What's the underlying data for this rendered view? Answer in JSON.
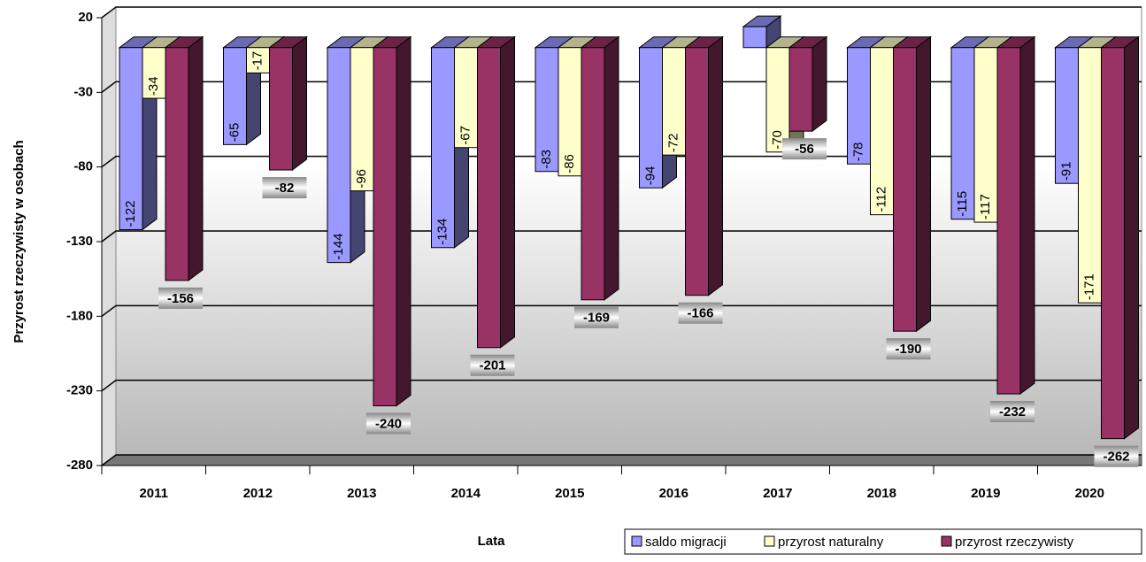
{
  "chart_data": {
    "type": "bar3d",
    "y_label": "Przyrost rzeczywisty w osobach",
    "x_label": "Lata",
    "categories": [
      "2011",
      "2012",
      "2013",
      "2014",
      "2015",
      "2016",
      "2017",
      "2018",
      "2019",
      "2020"
    ],
    "series": [
      {
        "name": "saldo migracji",
        "color": "#9999ff",
        "values": [
          -122,
          -65,
          -144,
          -134,
          -83,
          -94,
          14,
          -78,
          -115,
          -91
        ],
        "value_labels": [
          "-122",
          "-65",
          "-144",
          "-134",
          "-83",
          "-94",
          null,
          "-78",
          "-115",
          "-91"
        ]
      },
      {
        "name": "przyrost naturalny",
        "color": "#ffffcc",
        "values": [
          -34,
          -17,
          -96,
          -67,
          -86,
          -72,
          -70,
          -112,
          -117,
          -171
        ]
      },
      {
        "name": "przyrost rzeczywisty",
        "color": "#993366",
        "values": [
          -156,
          -82,
          -240,
          -201,
          -169,
          -166,
          -56,
          -190,
          -232,
          -262
        ]
      }
    ],
    "ylim": [
      -280,
      20
    ],
    "yticks": [
      -280,
      -230,
      -180,
      -130,
      -80,
      -30,
      20
    ],
    "grid": true,
    "legend": "bottom-right"
  }
}
